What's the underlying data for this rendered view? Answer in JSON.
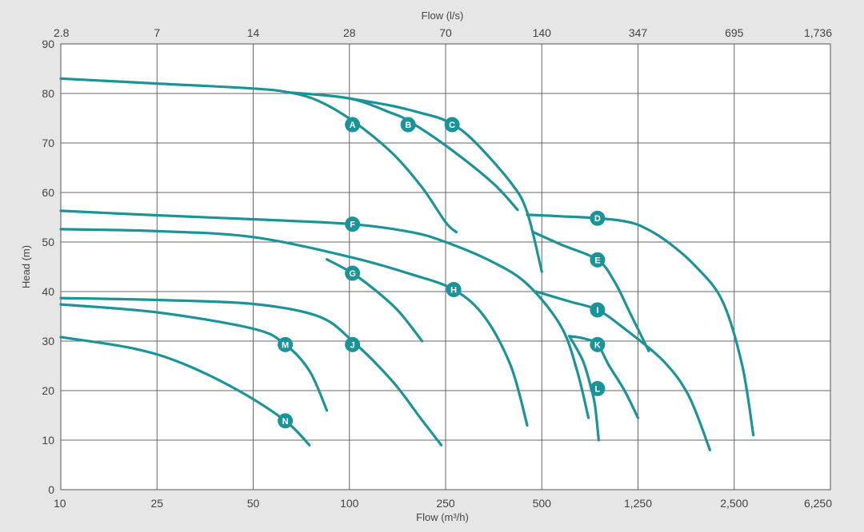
{
  "chart_data": {
    "type": "line",
    "title": "",
    "xlabel": "Flow (m³/h)",
    "x2label": "Flow (l/s)",
    "ylabel": "Head (m)",
    "ylim": [
      0,
      90
    ],
    "x_ticks": [
      {
        "label": "10",
        "value": 10
      },
      {
        "label": "25",
        "value": 25
      },
      {
        "label": "50",
        "value": 50
      },
      {
        "label": "100",
        "value": 100
      },
      {
        "label": "250",
        "value": 250
      },
      {
        "label": "500",
        "value": 500
      },
      {
        "label": "1,250",
        "value": 1250
      },
      {
        "label": "2,500",
        "value": 2500
      },
      {
        "label": "6,250",
        "value": 6250
      }
    ],
    "x2_ticks": [
      "2.8",
      "7",
      "14",
      "28",
      "70",
      "140",
      "347",
      "695",
      "1,736"
    ],
    "y_ticks": [
      "0",
      "10",
      "20",
      "30",
      "40",
      "50",
      "60",
      "70",
      "80",
      "90"
    ],
    "grid": true,
    "curve_color": "#1a9499",
    "series": [
      {
        "name": "A",
        "label_at": [
          103,
          73.7
        ],
        "points": [
          [
            10,
            83
          ],
          [
            25,
            82
          ],
          [
            50,
            81
          ],
          [
            65,
            80.2
          ],
          [
            80,
            78.5
          ],
          [
            103,
            74.5
          ],
          [
            150,
            68
          ],
          [
            200,
            61
          ],
          [
            250,
            54
          ],
          [
            270,
            52
          ]
        ]
      },
      {
        "name": "B",
        "label_at": [
          175,
          73.7
        ],
        "points": [
          [
            65,
            80.2
          ],
          [
            100,
            79
          ],
          [
            150,
            76
          ],
          [
            175,
            74.5
          ],
          [
            250,
            69.5
          ],
          [
            350,
            62
          ],
          [
            420,
            56.5
          ]
        ]
      },
      {
        "name": "C",
        "label_at": [
          262,
          73.7
        ],
        "points": [
          [
            100,
            79
          ],
          [
            150,
            77.5
          ],
          [
            200,
            76
          ],
          [
            250,
            74.5
          ],
          [
            300,
            71
          ],
          [
            400,
            62
          ],
          [
            450,
            56
          ],
          [
            500,
            44
          ]
        ]
      },
      {
        "name": "D",
        "label_at": [
          850,
          54.8
        ],
        "points": [
          [
            450,
            55.5
          ],
          [
            600,
            55.2
          ],
          [
            850,
            54.8
          ],
          [
            1100,
            54.2
          ],
          [
            1300,
            53
          ],
          [
            1550,
            50
          ],
          [
            1900,
            45
          ],
          [
            2300,
            38
          ],
          [
            2700,
            25
          ],
          [
            3000,
            11
          ]
        ]
      },
      {
        "name": "E",
        "label_at": [
          850,
          46.4
        ],
        "points": [
          [
            470,
            52
          ],
          [
            600,
            49.5
          ],
          [
            850,
            46.4
          ],
          [
            1000,
            42
          ],
          [
            1150,
            36
          ],
          [
            1350,
            28
          ]
        ]
      },
      {
        "name": "F",
        "label_at": [
          103,
          53.6
        ],
        "points": [
          [
            10,
            56.3
          ],
          [
            25,
            55.4
          ],
          [
            50,
            54.6
          ],
          [
            103,
            53.6
          ],
          [
            180,
            52
          ],
          [
            250,
            50
          ],
          [
            350,
            46
          ],
          [
            450,
            41.5
          ],
          [
            600,
            33
          ],
          [
            700,
            24
          ],
          [
            780,
            14.5
          ]
        ]
      },
      {
        "name": "G",
        "label_at": [
          103,
          43.7
        ],
        "points": [
          [
            85,
            46.5
          ],
          [
            103,
            43.7
          ],
          [
            130,
            40
          ],
          [
            160,
            36
          ],
          [
            200,
            30
          ]
        ]
      },
      {
        "name": "H",
        "label_at": [
          265,
          40.4
        ],
        "points": [
          [
            10,
            52.6
          ],
          [
            25,
            52.2
          ],
          [
            50,
            51
          ],
          [
            100,
            47
          ],
          [
            180,
            43.5
          ],
          [
            265,
            40.4
          ],
          [
            330,
            35
          ],
          [
            400,
            25
          ],
          [
            450,
            13
          ]
        ]
      },
      {
        "name": "I",
        "label_at": [
          850,
          36.3
        ],
        "points": [
          [
            480,
            40
          ],
          [
            650,
            38
          ],
          [
            850,
            36.3
          ],
          [
            1100,
            32.5
          ],
          [
            1500,
            26
          ],
          [
            1800,
            19
          ],
          [
            2100,
            8
          ]
        ]
      },
      {
        "name": "J",
        "label_at": [
          103,
          29.3
        ],
        "points": [
          [
            10,
            38.7
          ],
          [
            25,
            38.3
          ],
          [
            50,
            37.5
          ],
          [
            80,
            35
          ],
          [
            103,
            30
          ],
          [
            150,
            22
          ],
          [
            200,
            14
          ],
          [
            240,
            9
          ]
        ]
      },
      {
        "name": "K",
        "label_at": [
          850,
          29.3
        ],
        "points": [
          [
            650,
            31
          ],
          [
            750,
            30.5
          ],
          [
            850,
            29.3
          ],
          [
            950,
            25
          ],
          [
            1100,
            20
          ],
          [
            1250,
            14.5
          ]
        ]
      },
      {
        "name": "L",
        "label_at": [
          850,
          20.4
        ],
        "points": [
          [
            650,
            31
          ],
          [
            740,
            26
          ],
          [
            800,
            20.5
          ],
          [
            830,
            17
          ],
          [
            860,
            10
          ]
        ]
      },
      {
        "name": "M",
        "label_at": [
          63,
          29.3
        ],
        "points": [
          [
            10,
            37.4
          ],
          [
            25,
            35.8
          ],
          [
            50,
            32.5
          ],
          [
            63,
            29.3
          ],
          [
            75,
            24
          ],
          [
            85,
            16
          ]
        ]
      },
      {
        "name": "N",
        "label_at": [
          63,
          13.9
        ],
        "points": [
          [
            10,
            30.8
          ],
          [
            20,
            28.5
          ],
          [
            30,
            25.5
          ],
          [
            45,
            20
          ],
          [
            63,
            13.9
          ],
          [
            75,
            9
          ]
        ]
      }
    ]
  }
}
